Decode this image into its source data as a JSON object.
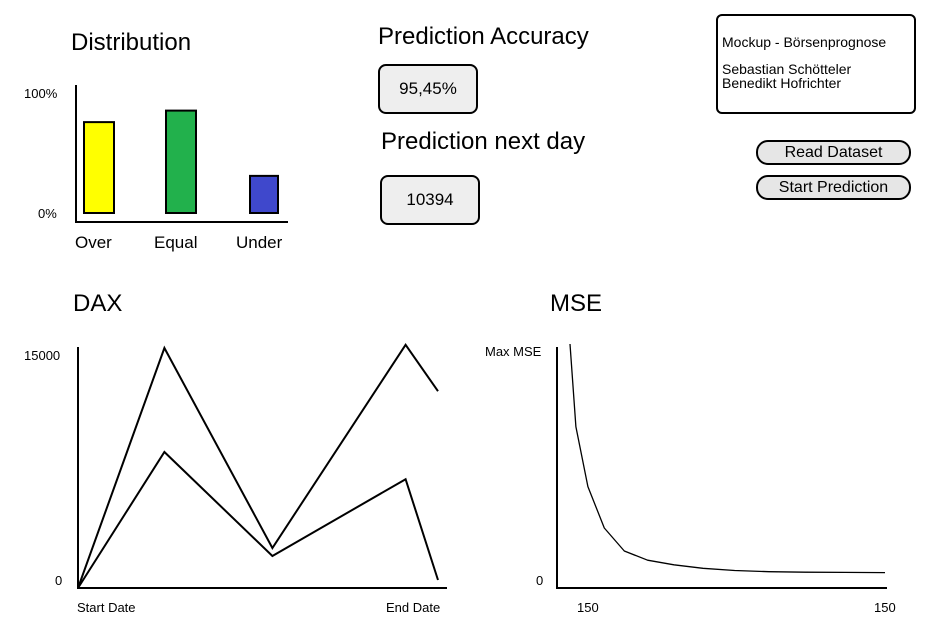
{
  "distribution": {
    "title": "Distribution",
    "y_max_label": "100%",
    "y_min_label": "0%"
  },
  "accuracy": {
    "title": "Prediction Accuracy",
    "value": "95,45%"
  },
  "next_day": {
    "title": "Prediction next day",
    "value": "10394"
  },
  "info": {
    "title": "Mockup - Börsenprognose",
    "author1": "Sebastian Schötteler",
    "author2": "Benedikt Hofrichter"
  },
  "buttons": {
    "read_dataset": "Read Dataset",
    "start_prediction": "Start Prediction"
  },
  "dax": {
    "title": "DAX",
    "y_max_label": "15000",
    "y_min_label": "0",
    "x_start_label": "Start Date",
    "x_end_label": "End Date"
  },
  "mse": {
    "title": "MSE",
    "y_max_label": "Max MSE",
    "y_min_label": "0",
    "x_start_label": "150",
    "x_end_label": "150"
  },
  "colors": {
    "over": "#ffff00",
    "equal": "#22b14c",
    "under": "#3f48cc"
  },
  "chart_data": [
    {
      "type": "bar",
      "title": "Distribution",
      "categories": [
        "Over",
        "Equal",
        "Under"
      ],
      "values": [
        0.71,
        0.8,
        0.29
      ],
      "ylim": [
        0,
        1
      ],
      "yticks": [
        "0%",
        "100%"
      ],
      "colors": [
        "#ffff00",
        "#22b14c",
        "#3f48cc"
      ]
    },
    {
      "type": "line",
      "title": "DAX",
      "x": [
        0,
        0.24,
        0.54,
        0.91,
        1.0
      ],
      "series": [
        {
          "values": [
            0,
            15000,
            2500,
            15200,
            12300
          ]
        },
        {
          "values": [
            0,
            8500,
            2000,
            6800,
            500
          ]
        }
      ],
      "ylim": [
        0,
        15000
      ],
      "xticks": [
        "Start Date",
        "End Date"
      ],
      "yticks": [
        "0",
        "15000"
      ]
    },
    {
      "type": "line",
      "title": "MSE",
      "series": [
        {
          "values": [
            1.0,
            0.64,
            0.38,
            0.2,
            0.1,
            0.06,
            0.04,
            0.025,
            0.015,
            0.01,
            0.008,
            0.007,
            0.006
          ]
        }
      ],
      "xticks": [
        "150",
        "150"
      ],
      "yticks": [
        "0",
        "Max MSE"
      ]
    }
  ]
}
